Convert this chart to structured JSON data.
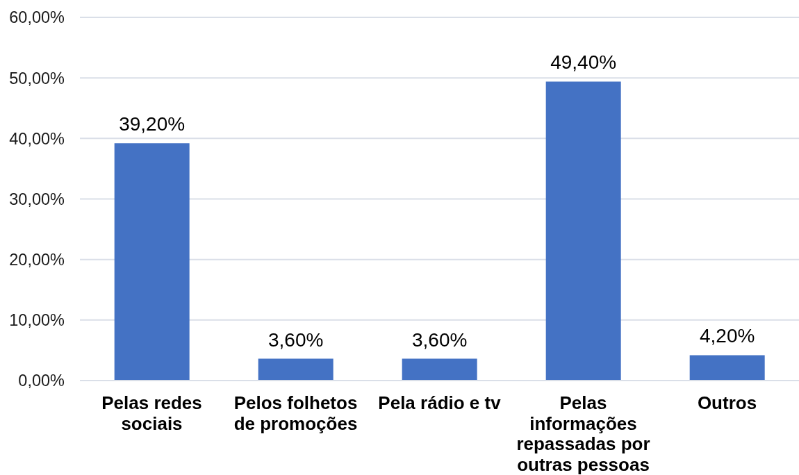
{
  "chart_data": {
    "type": "bar",
    "categories": [
      "Pelas redes sociais",
      "Pelos folhetos de promoções",
      "Pela rádio e tv",
      "Pelas informações repassadas por outras pessoas",
      "Outros"
    ],
    "values": [
      39.2,
      3.6,
      3.6,
      49.4,
      4.2
    ],
    "value_labels": [
      "39,20%",
      "3,60%",
      "3,60%",
      "49,40%",
      "4,20%"
    ],
    "color": "#4472c4",
    "ylim": [
      0,
      60
    ],
    "yticks": [
      {
        "value": 0,
        "label": "0,00%"
      },
      {
        "value": 10,
        "label": "10,00%"
      },
      {
        "value": 20,
        "label": "20,00%"
      },
      {
        "value": 30,
        "label": "30,00%"
      },
      {
        "value": 40,
        "label": "40,00%"
      },
      {
        "value": 50,
        "label": "50,00%"
      },
      {
        "value": 60,
        "label": "60,00%"
      }
    ],
    "grid": "y"
  }
}
